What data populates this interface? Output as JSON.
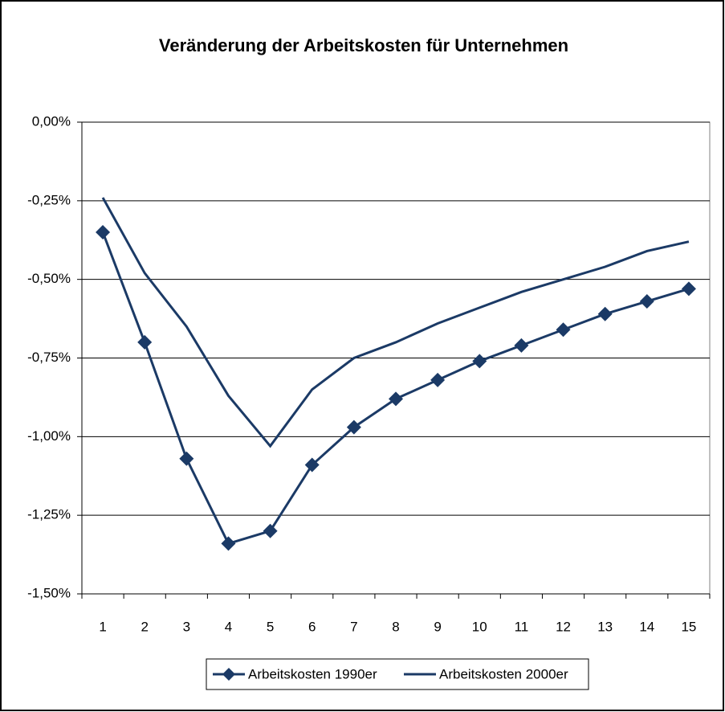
{
  "chart_data": {
    "type": "line",
    "title": "Veränderung der Arbeitskosten für Unternehmen",
    "categories": [
      "1",
      "2",
      "3",
      "4",
      "5",
      "6",
      "7",
      "8",
      "9",
      "10",
      "11",
      "12",
      "13",
      "14",
      "15"
    ],
    "series": [
      {
        "name": "Arbeitskosten 1990er",
        "color": "#1b3a66",
        "marker": "diamond",
        "values": [
          -0.35,
          -0.7,
          -1.07,
          -1.34,
          -1.3,
          -1.09,
          -0.97,
          -0.88,
          -0.82,
          -0.76,
          -0.71,
          -0.66,
          -0.61,
          -0.57,
          -0.53
        ]
      },
      {
        "name": "Arbeitskosten 2000er",
        "color": "#1b3a66",
        "values": [
          -0.24,
          -0.48,
          -0.65,
          -0.87,
          -1.03,
          -0.85,
          -0.75,
          -0.7,
          -0.64,
          -0.59,
          -0.54,
          -0.5,
          -0.46,
          -0.41,
          -0.38
        ]
      }
    ],
    "ylim": [
      -1.5,
      0
    ],
    "yticks": [
      {
        "value": 0,
        "label": "0,00%"
      },
      {
        "value": -0.25,
        "label": "-0,25%"
      },
      {
        "value": -0.5,
        "label": "-0,50%"
      },
      {
        "value": -0.75,
        "label": "-0,75%"
      },
      {
        "value": -1,
        "label": "-1,00%"
      },
      {
        "value": -1.25,
        "label": "-1,25%"
      },
      {
        "value": -1.5,
        "label": "-1,50%"
      }
    ],
    "grid": true,
    "legend": "bottom"
  }
}
